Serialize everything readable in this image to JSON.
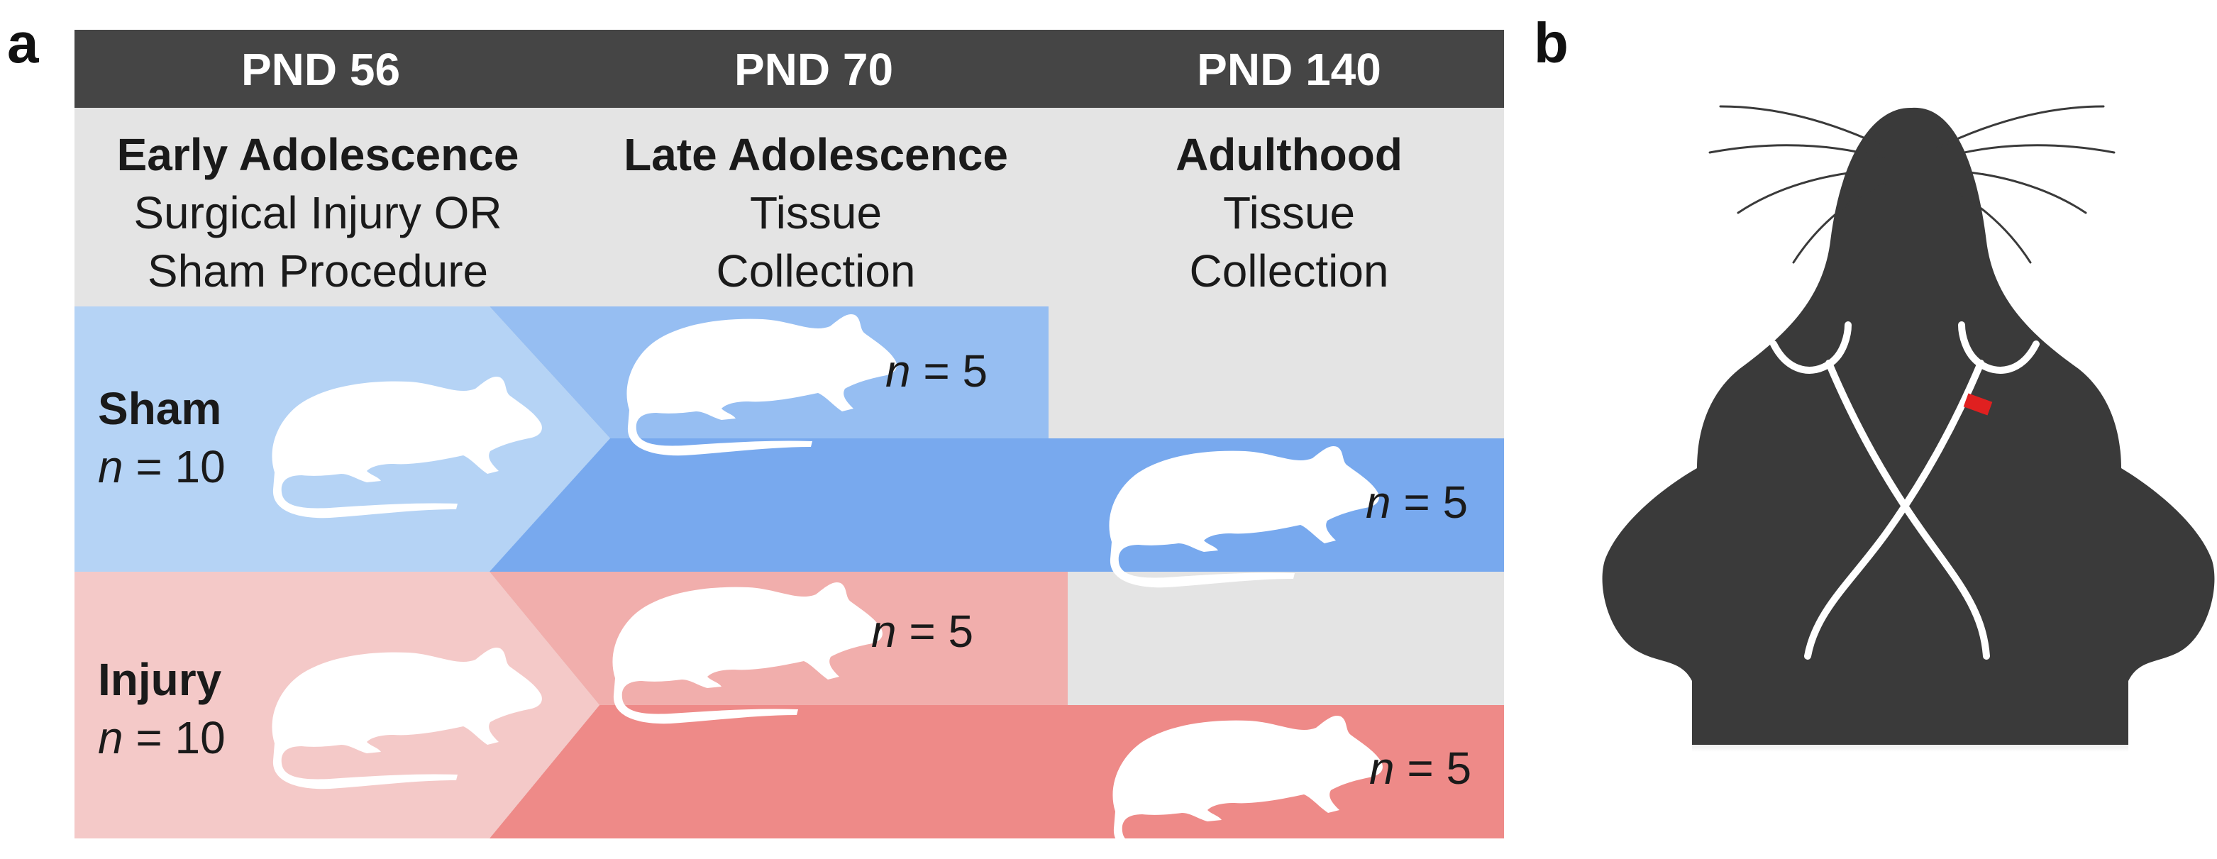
{
  "panels": {
    "a_label": "a",
    "b_label": "b"
  },
  "timeline": [
    {
      "pnd": "PND 56",
      "stage": "Early Adolescence",
      "line1": "Surgical Injury OR",
      "line2": "Sham Procedure"
    },
    {
      "pnd": "PND 70",
      "stage": "Late Adolescence",
      "line1": "Tissue",
      "line2": "Collection"
    },
    {
      "pnd": "PND 140",
      "stage": "Adulthood",
      "line1": "Tissue",
      "line2": "Collection"
    }
  ],
  "groups": {
    "sham": {
      "name": "Sham",
      "n_var": "n",
      "n_eq": " = 10",
      "late_n_var": "n",
      "late_n_eq": " = 5",
      "adult_n_var": "n",
      "adult_n_eq": " = 5"
    },
    "injury": {
      "name": "Injury",
      "n_var": "n",
      "n_eq": " = 10",
      "late_n_var": "n",
      "late_n_eq": " = 5",
      "adult_n_var": "n",
      "adult_n_eq": " = 5"
    }
  },
  "colors": {
    "header_bar": "#454545",
    "panel_bg": "#e4e4e4",
    "sham_light": "#b5d3f5",
    "sham_mid": "#96bef2",
    "sham_dark": "#78a9ee",
    "injury_light": "#f4c9c8",
    "injury_mid": "#f1aeac",
    "injury_dark": "#ee8a88",
    "rat_body": "#3a3a3a",
    "nerve": "#ffffff",
    "ligature": "#e02020"
  },
  "icons": {
    "rat": "rat-silhouette-icon",
    "rat_head": "rat-head-dorsal-icon",
    "ligature": "ligature-marker-icon"
  }
}
